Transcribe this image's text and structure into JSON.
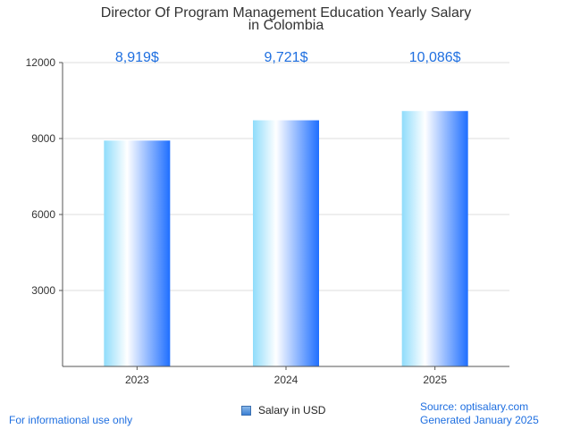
{
  "chart_data": {
    "type": "bar",
    "title": "Director Of Program Management Education Yearly Salary in Colombia",
    "title_lines": [
      "Director Of Program Management Education Yearly Salary",
      "in Colombia"
    ],
    "categories": [
      "2023",
      "2024",
      "2025"
    ],
    "series": [
      {
        "name": "Salary in USD",
        "values": [
          8919,
          9721,
          10086
        ]
      }
    ],
    "data_labels": [
      "8,919$",
      "9,721$",
      "10,086$"
    ],
    "ylim": [
      0,
      12000
    ],
    "yticks": [
      3000,
      6000,
      9000,
      12000
    ],
    "xlabel": "",
    "ylabel": "",
    "grid": true,
    "legend_position": "bottom",
    "colors": {
      "bar_light": "#ffffff",
      "bar_mid": "#8fdcfb",
      "bar_dark": "#1f6fff",
      "label": "#1f6fe0"
    }
  },
  "footer": {
    "left_text": "For informational use only",
    "source": "Source: optisalary.com",
    "generated": "Generated January 2025"
  }
}
